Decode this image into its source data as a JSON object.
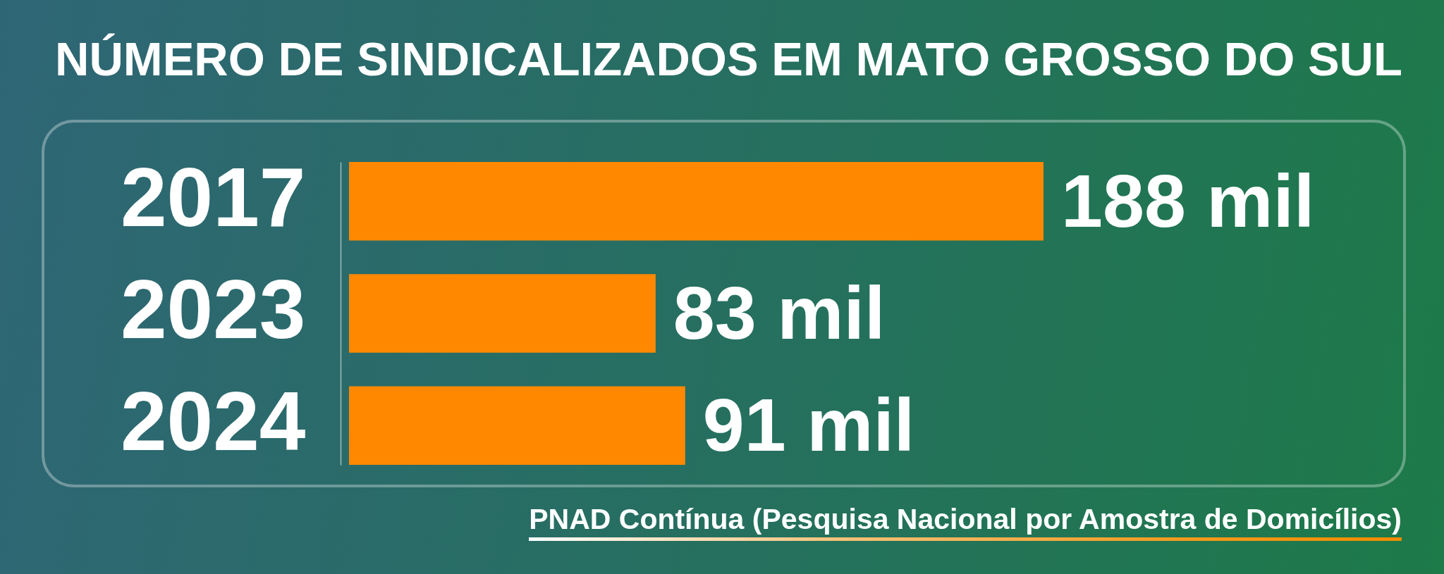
{
  "chart_data": {
    "type": "bar",
    "orientation": "horizontal",
    "title": "NÚMERO DE SINDICALIZADOS EM MATO GROSSO DO SUL",
    "categories": [
      "2017",
      "2023",
      "2024"
    ],
    "values": [
      188,
      83,
      91
    ],
    "value_labels": [
      "188 mil",
      "83 mil",
      "91 mil"
    ],
    "color": "#ff8800",
    "tick_labels": "y",
    "annotations": [
      "PNAD Contínua (Pesquisa Nacional por Amostra de Domicílios)"
    ]
  }
}
